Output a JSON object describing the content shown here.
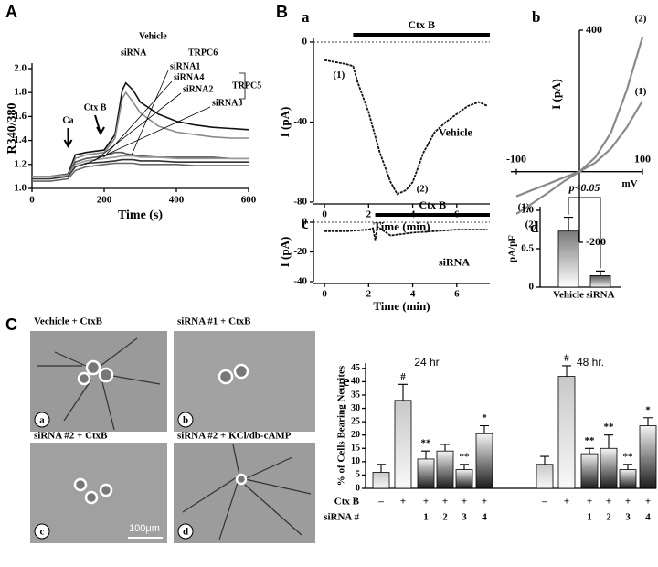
{
  "panel_letters": [
    "A",
    "B",
    "C"
  ],
  "chart_data": [
    {
      "type": "line",
      "xlabel": "Time (s)",
      "ylabel": "R340/380",
      "x": [
        0,
        50,
        100,
        120,
        150,
        200,
        230,
        250,
        260,
        280,
        300,
        350,
        400,
        450,
        500,
        550,
        600
      ],
      "xlim": [
        0,
        600
      ],
      "xticks": [
        0,
        200,
        400,
        600
      ],
      "ylim": [
        1,
        2
      ],
      "yticks": [
        {
          "value": 1,
          "label": "1.0"
        },
        1.2,
        1.4,
        1.6,
        1.8,
        {
          "value": 2,
          "label": "2.0"
        }
      ],
      "series": [
        {
          "name": "Vehicle",
          "color": "#111111",
          "values": [
            1.1,
            1.1,
            1.12,
            1.28,
            1.3,
            1.32,
            1.45,
            1.82,
            1.88,
            1.82,
            1.72,
            1.62,
            1.56,
            1.53,
            1.51,
            1.5,
            1.49
          ]
        },
        {
          "name": "siRNA",
          "color": "#8a8a8a",
          "values": [
            1.08,
            1.08,
            1.1,
            1.25,
            1.28,
            1.3,
            1.42,
            1.75,
            1.8,
            1.72,
            1.63,
            1.52,
            1.47,
            1.45,
            1.43,
            1.42,
            1.42
          ]
        },
        {
          "name": "siRNA1",
          "color": "#555555",
          "values": [
            1.1,
            1.1,
            1.12,
            1.22,
            1.25,
            1.27,
            1.3,
            1.3,
            1.29,
            1.28,
            1.27,
            1.26,
            1.26,
            1.26,
            1.26,
            1.25,
            1.25
          ]
        },
        {
          "name": "siRNA4",
          "color": "#999999",
          "values": [
            1.1,
            1.1,
            1.11,
            1.2,
            1.23,
            1.25,
            1.26,
            1.27,
            1.27,
            1.27,
            1.26,
            1.26,
            1.25,
            1.25,
            1.25,
            1.25,
            1.25
          ]
        },
        {
          "name": "siRNA2",
          "color": "#333333",
          "values": [
            1.08,
            1.08,
            1.1,
            1.18,
            1.21,
            1.22,
            1.23,
            1.24,
            1.24,
            1.24,
            1.23,
            1.23,
            1.22,
            1.22,
            1.22,
            1.22,
            1.22
          ]
        },
        {
          "name": "siRNA3",
          "color": "#666666",
          "values": [
            1.06,
            1.06,
            1.08,
            1.15,
            1.18,
            1.2,
            1.21,
            1.21,
            1.21,
            1.21,
            1.2,
            1.2,
            1.2,
            1.19,
            1.19,
            1.19,
            1.19
          ]
        }
      ],
      "groups": [
        {
          "label": "TRPC6"
        },
        {
          "label": "TRPC5"
        }
      ],
      "arrows": [
        {
          "label": "Ca",
          "x": 100
        },
        {
          "label": "Ctx B",
          "x": 190
        }
      ]
    },
    {
      "type": "trace",
      "panel": "a",
      "xlabel": "Time (min)",
      "ylabel": "I (pA)",
      "x": [
        0,
        0.5,
        1,
        1.3,
        1.5,
        2,
        2.5,
        3,
        3.3,
        3.7,
        4,
        4.5,
        5,
        5.5,
        6,
        6.5,
        7,
        7.4
      ],
      "xlim": [
        -0.5,
        7.5
      ],
      "xticks": [
        0,
        2,
        4,
        6
      ],
      "ylim": [
        -80,
        0
      ],
      "yticks": [
        0,
        -40,
        -80
      ],
      "zero_line": true,
      "stimulus": {
        "label": "Ctx B",
        "start": 1.3,
        "end": 7.5
      },
      "series": [
        {
          "name": "Vehicle",
          "color": "#111111",
          "values": [
            -9,
            -10,
            -11,
            -12,
            -20,
            -35,
            -55,
            -70,
            -76,
            -74,
            -70,
            -55,
            -45,
            -40,
            -36,
            -32,
            -30,
            -32
          ]
        }
      ],
      "markers": [
        {
          "label": "(1)",
          "x": 1.3,
          "y": -12
        },
        {
          "label": "(2)",
          "x": 4,
          "y": -70
        }
      ]
    },
    {
      "type": "iv",
      "panel": "b",
      "xlabel": "mV",
      "ylabel": "I (pA)",
      "x": [
        -100,
        -75,
        -50,
        -25,
        0,
        25,
        50,
        75,
        100
      ],
      "xlim": [
        -100,
        100
      ],
      "xticks": [
        -100,
        100
      ],
      "ylim": [
        -200,
        400
      ],
      "yticks": [
        400,
        -200
      ],
      "series": [
        {
          "name": "(1)",
          "color": "#8a8a8a",
          "values": [
            -70,
            -52,
            -35,
            -17,
            0,
            25,
            65,
            125,
            200
          ]
        },
        {
          "name": "(2)",
          "color": "#8a8a8a",
          "values": [
            -120,
            -90,
            -60,
            -28,
            0,
            40,
            110,
            230,
            380
          ]
        }
      ]
    },
    {
      "type": "trace",
      "panel": "c",
      "xlabel": "Time (min)",
      "ylabel": "I (pA)",
      "x": [
        0,
        0.5,
        1,
        1.5,
        2,
        2.2,
        2.3,
        2.4,
        2.6,
        3,
        3.5,
        4,
        5,
        6,
        7,
        7.4
      ],
      "xlim": [
        -0.5,
        7.5
      ],
      "xticks": [
        0,
        2,
        4,
        6
      ],
      "ylim": [
        -40,
        0
      ],
      "yticks": [
        0,
        -20,
        -40
      ],
      "zero_line": true,
      "stimulus": {
        "label": "Ctx B",
        "start": 2.3,
        "end": 7.5
      },
      "series": [
        {
          "name": "siRNA",
          "color": "#111111",
          "values": [
            -6,
            -6,
            -6,
            -5.5,
            -5,
            -4,
            -12,
            -3,
            -5,
            -9,
            -8,
            -7,
            -6,
            -5,
            -5,
            -5
          ]
        }
      ]
    },
    {
      "type": "bar",
      "panel": "d",
      "ylabel": "pA/pF",
      "categories": [
        "Vehicle",
        "siRNA"
      ],
      "values": [
        0.73,
        0.15
      ],
      "errors": [
        0.18,
        0.06
      ],
      "ylim": [
        0,
        1
      ],
      "yticks": [
        0,
        0.5,
        {
          "value": 1,
          "label": "1.0"
        }
      ],
      "annotation": "p<0.05"
    },
    {
      "type": "grouped_bar",
      "panel": "e",
      "ylabel": "% of Cells Bearing Neurites",
      "ylim": [
        0,
        47
      ],
      "yticks": [
        0,
        5,
        10,
        15,
        20,
        25,
        30,
        35,
        40,
        45
      ],
      "groups": [
        {
          "name": "24 hr",
          "values": [
            6,
            33,
            11,
            14,
            7,
            20.5
          ],
          "errors": [
            3,
            6,
            3,
            2.5,
            2,
            3
          ],
          "significance": [
            null,
            "#",
            "**",
            null,
            "**",
            "*"
          ]
        },
        {
          "name": "48 hr.",
          "values": [
            9,
            42,
            13,
            15,
            7,
            23.5
          ],
          "errors": [
            3,
            4,
            2,
            5,
            2,
            3
          ],
          "significance": [
            null,
            "#",
            "**",
            "**",
            "**",
            "*"
          ]
        }
      ],
      "row_labels": [
        "Ctx B",
        "siRNA #"
      ],
      "rows": [
        [
          "–",
          "+",
          "+",
          "+",
          "+",
          "+"
        ],
        [
          null,
          null,
          "1",
          "2",
          "3",
          "4"
        ]
      ]
    }
  ],
  "micrographs": {
    "images": [
      {
        "letter": "a",
        "caption": "Vechicle + CtxB"
      },
      {
        "letter": "b",
        "caption": "siRNA #1 + CtxB"
      },
      {
        "letter": "c",
        "caption": "siRNA #2 +  CtxB"
      },
      {
        "letter": "d",
        "caption": "siRNA #2 + KCl/db-cAMP"
      }
    ],
    "scale_bar": "100μm"
  }
}
